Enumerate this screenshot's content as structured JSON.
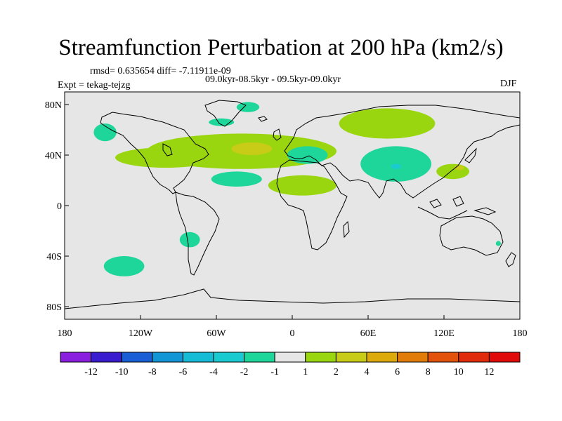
{
  "title": "Streamfunction Perturbation at 200 hPa (km2/s)",
  "stats_line": "rmsd= 0.635654 diff= -7.11911e-09",
  "period_line": "09.0kyr-08.5kyr - 09.5kyr-09.0kyr",
  "expt_line": "Expt = tekag-tejzg",
  "season": "DJF",
  "map": {
    "projection": "cylindrical-equidistant",
    "lon_range": [
      -180,
      180
    ],
    "lat_range": [
      -90,
      90
    ],
    "background_color": "#e6e6e6",
    "x_ticks": [
      {
        "lon": -180,
        "label": "180"
      },
      {
        "lon": -120,
        "label": "120W"
      },
      {
        "lon": -60,
        "label": "60W"
      },
      {
        "lon": 0,
        "label": "0"
      },
      {
        "lon": 60,
        "label": "60E"
      },
      {
        "lon": 120,
        "label": "120E"
      },
      {
        "lon": 180,
        "label": "180"
      }
    ],
    "y_ticks": [
      {
        "lat": 80,
        "label": "80N"
      },
      {
        "lat": 40,
        "label": "40N"
      },
      {
        "lat": 0,
        "label": "0"
      },
      {
        "lat": -40,
        "label": "40S"
      },
      {
        "lat": -80,
        "label": "80S"
      }
    ]
  },
  "chart_data": {
    "type": "heatmap",
    "title": "Streamfunction Perturbation at 200 hPa (km2/s)",
    "units": "km2/s",
    "contour_levels": [
      -12,
      -10,
      -8,
      -6,
      -4,
      -2,
      -1,
      1,
      2,
      4,
      6,
      8,
      10,
      12
    ],
    "colorbar_labels": [
      "-12",
      "-10",
      "-8",
      "-6",
      "-4",
      "-2",
      "-1",
      "1",
      "2",
      "4",
      "6",
      "8",
      "10",
      "12"
    ],
    "colorbar_colors": [
      "#8a1fe0",
      "#3a1ccf",
      "#1a5ed6",
      "#1396d6",
      "#16bcd6",
      "#19cbd0",
      "#1ed69a",
      "#e6e6e6",
      "#9ad60f",
      "#c8cc16",
      "#dcaa0a",
      "#e27c08",
      "#e2520a",
      "#e02c0c",
      "#e00a0a"
    ],
    "regions": [
      {
        "name": "north-atlantic-positive",
        "value_range": "1 to 2",
        "center": [
          -40,
          43
        ],
        "extent_lon": 75,
        "extent_lat": 14,
        "color": "#9ad60f"
      },
      {
        "name": "north-atlantic-core",
        "value_range": "2 to 4",
        "center": [
          -32,
          45
        ],
        "extent_lon": 16,
        "extent_lat": 5,
        "color": "#c8cc16"
      },
      {
        "name": "north-america-positive",
        "value_range": "1 to 2",
        "center": [
          -100,
          38
        ],
        "extent_lon": 40,
        "extent_lat": 8,
        "color": "#9ad60f"
      },
      {
        "name": "siberia-positive",
        "value_range": "1 to 2",
        "center": [
          75,
          65
        ],
        "extent_lon": 38,
        "extent_lat": 12,
        "color": "#9ad60f"
      },
      {
        "name": "north-africa-positive",
        "value_range": "1 to 2",
        "center": [
          8,
          16
        ],
        "extent_lon": 27,
        "extent_lat": 8,
        "color": "#9ad60f"
      },
      {
        "name": "east-asia-positive",
        "value_range": "1 to 2",
        "center": [
          127,
          27
        ],
        "extent_lon": 13,
        "extent_lat": 6,
        "color": "#9ad60f"
      },
      {
        "name": "east-asia-core",
        "value_range": "2 to 4",
        "center": [
          132,
          30
        ],
        "extent_lon": 4,
        "extent_lat": 2,
        "color": "#c8cc16"
      },
      {
        "name": "central-asia-negative",
        "value_range": "-2 to -1",
        "center": [
          82,
          33
        ],
        "extent_lon": 28,
        "extent_lat": 14,
        "color": "#1ed69a"
      },
      {
        "name": "central-asia-core",
        "value_range": "-4 to -2",
        "center": [
          82,
          31
        ],
        "extent_lon": 4,
        "extent_lat": 2,
        "color": "#19cbd0"
      },
      {
        "name": "mediterranean-negative",
        "value_range": "-2 to -1",
        "center": [
          12,
          40
        ],
        "extent_lon": 16,
        "extent_lat": 7,
        "color": "#1ed69a"
      },
      {
        "name": "subtropical-atlantic-negative",
        "value_range": "-2 to -1",
        "center": [
          -44,
          21
        ],
        "extent_lon": 20,
        "extent_lat": 6,
        "color": "#1ed69a"
      },
      {
        "name": "alaska-negative",
        "value_range": "-2 to -1",
        "center": [
          -148,
          58
        ],
        "extent_lon": 9,
        "extent_lat": 7,
        "color": "#1ed69a"
      },
      {
        "name": "south-pacific-negative",
        "value_range": "-2 to -1",
        "center": [
          -133,
          -48
        ],
        "extent_lon": 16,
        "extent_lat": 8,
        "color": "#1ed69a"
      },
      {
        "name": "south-america-negative",
        "value_range": "-2 to -1",
        "center": [
          -81,
          -27
        ],
        "extent_lon": 8,
        "extent_lat": 6,
        "color": "#1ed69a"
      },
      {
        "name": "greenland-negative",
        "value_range": "-2 to -1",
        "center": [
          -35,
          78
        ],
        "extent_lon": 9,
        "extent_lat": 4,
        "color": "#1ed69a"
      },
      {
        "name": "canada-negative",
        "value_range": "-2 to -1",
        "center": [
          -56,
          66
        ],
        "extent_lon": 10,
        "extent_lat": 3,
        "color": "#1ed69a"
      },
      {
        "name": "tasman-negative",
        "value_range": "-2 to -1",
        "center": [
          163,
          -30
        ],
        "extent_lon": 2,
        "extent_lat": 2,
        "color": "#1ed69a"
      }
    ]
  }
}
